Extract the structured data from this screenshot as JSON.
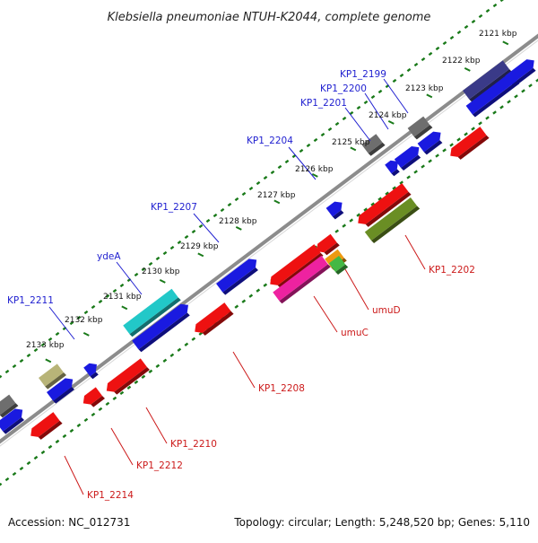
{
  "title": "Klebsiella pneumoniae NTUH-K2044, complete genome",
  "footer": {
    "accession": "Accession: NC_012731",
    "summary": "Topology: circular; Length: 5,248,520 bp; Genes: 5,110"
  },
  "colors": {
    "background": "#ffffff",
    "axis": "#8c8c8c",
    "tick_dots": "#1a7a1a",
    "forward_label": "#1f1fd0",
    "reverse_label": "#cc1a1a",
    "gene_blue": "#1a1ae0",
    "gene_red": "#ee1111",
    "gene_gray": "#6e6e6e",
    "gene_navy": "#3a3a88",
    "gene_cyan": "#22c8c8",
    "gene_khaki": "#b8b478",
    "gene_olive": "#6a8e24",
    "gene_magenta": "#ee22a0",
    "gene_orange": "#ee9911",
    "gene_green": "#44b844"
  },
  "kbp_ticks": [
    "2121 kbp",
    "2122 kbp",
    "2123 kbp",
    "2124 kbp",
    "2125 kbp",
    "2126 kbp",
    "2127 kbp",
    "2128 kbp",
    "2129 kbp",
    "2130 kbp",
    "2131 kbp",
    "2132 kbp",
    "2133 kbp"
  ],
  "forward_labels": [
    "KP1_2199",
    "KP1_2200",
    "KP1_2201",
    "KP1_2204",
    "KP1_2207",
    "ydeA",
    "KP1_2211"
  ],
  "reverse_labels": [
    "KP1_2202",
    "umuD",
    "umuC",
    "KP1_2208",
    "KP1_2210",
    "KP1_2212",
    "KP1_2214"
  ]
}
